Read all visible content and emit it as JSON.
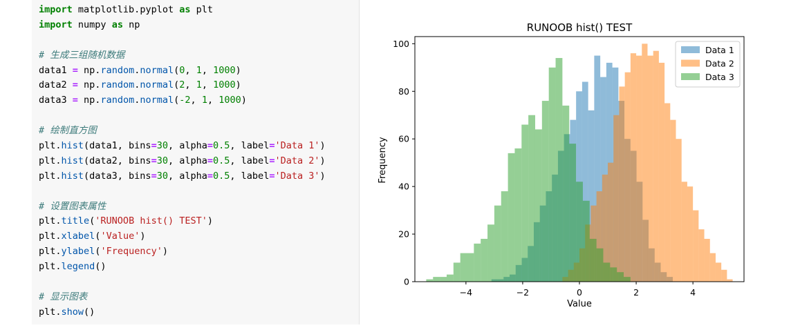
{
  "code": {
    "lines": [
      [
        {
          "t": "import",
          "c": "kw"
        },
        {
          "t": " matplotlib.pyplot "
        },
        {
          "t": "as",
          "c": "kw"
        },
        {
          "t": " plt"
        }
      ],
      [
        {
          "t": "import",
          "c": "kw"
        },
        {
          "t": " numpy "
        },
        {
          "t": "as",
          "c": "kw"
        },
        {
          "t": " np"
        }
      ],
      [],
      [
        {
          "t": "# 生成三组随机数据",
          "c": "cmt"
        }
      ],
      [
        {
          "t": "data1 "
        },
        {
          "t": "=",
          "c": "op"
        },
        {
          "t": " np."
        },
        {
          "t": "random",
          "c": "fn"
        },
        {
          "t": "."
        },
        {
          "t": "normal",
          "c": "fn"
        },
        {
          "t": "("
        },
        {
          "t": "0",
          "c": "num"
        },
        {
          "t": ", "
        },
        {
          "t": "1",
          "c": "num"
        },
        {
          "t": ", "
        },
        {
          "t": "1000",
          "c": "num"
        },
        {
          "t": ")"
        }
      ],
      [
        {
          "t": "data2 "
        },
        {
          "t": "=",
          "c": "op"
        },
        {
          "t": " np."
        },
        {
          "t": "random",
          "c": "fn"
        },
        {
          "t": "."
        },
        {
          "t": "normal",
          "c": "fn"
        },
        {
          "t": "("
        },
        {
          "t": "2",
          "c": "num"
        },
        {
          "t": ", "
        },
        {
          "t": "1",
          "c": "num"
        },
        {
          "t": ", "
        },
        {
          "t": "1000",
          "c": "num"
        },
        {
          "t": ")"
        }
      ],
      [
        {
          "t": "data3 "
        },
        {
          "t": "=",
          "c": "op"
        },
        {
          "t": " np."
        },
        {
          "t": "random",
          "c": "fn"
        },
        {
          "t": "."
        },
        {
          "t": "normal",
          "c": "fn"
        },
        {
          "t": "("
        },
        {
          "t": "-2",
          "c": "num"
        },
        {
          "t": ", "
        },
        {
          "t": "1",
          "c": "num"
        },
        {
          "t": ", "
        },
        {
          "t": "1000",
          "c": "num"
        },
        {
          "t": ")"
        }
      ],
      [],
      [
        {
          "t": "# 绘制直方图",
          "c": "cmt"
        }
      ],
      [
        {
          "t": "plt."
        },
        {
          "t": "hist",
          "c": "fn"
        },
        {
          "t": "(data1, bins"
        },
        {
          "t": "=",
          "c": "op"
        },
        {
          "t": "30",
          "c": "num"
        },
        {
          "t": ", alpha"
        },
        {
          "t": "=",
          "c": "op"
        },
        {
          "t": "0.5",
          "c": "num"
        },
        {
          "t": ", label"
        },
        {
          "t": "=",
          "c": "op"
        },
        {
          "t": "'Data 1'",
          "c": "str"
        },
        {
          "t": ")"
        }
      ],
      [
        {
          "t": "plt."
        },
        {
          "t": "hist",
          "c": "fn"
        },
        {
          "t": "(data2, bins"
        },
        {
          "t": "=",
          "c": "op"
        },
        {
          "t": "30",
          "c": "num"
        },
        {
          "t": ", alpha"
        },
        {
          "t": "=",
          "c": "op"
        },
        {
          "t": "0.5",
          "c": "num"
        },
        {
          "t": ", label"
        },
        {
          "t": "=",
          "c": "op"
        },
        {
          "t": "'Data 2'",
          "c": "str"
        },
        {
          "t": ")"
        }
      ],
      [
        {
          "t": "plt."
        },
        {
          "t": "hist",
          "c": "fn"
        },
        {
          "t": "(data3, bins"
        },
        {
          "t": "=",
          "c": "op"
        },
        {
          "t": "30",
          "c": "num"
        },
        {
          "t": ", alpha"
        },
        {
          "t": "=",
          "c": "op"
        },
        {
          "t": "0.5",
          "c": "num"
        },
        {
          "t": ", label"
        },
        {
          "t": "=",
          "c": "op"
        },
        {
          "t": "'Data 3'",
          "c": "str"
        },
        {
          "t": ")"
        }
      ],
      [],
      [
        {
          "t": "# 设置图表属性",
          "c": "cmt"
        }
      ],
      [
        {
          "t": "plt."
        },
        {
          "t": "title",
          "c": "fn"
        },
        {
          "t": "("
        },
        {
          "t": "'RUNOOB hist() TEST'",
          "c": "str"
        },
        {
          "t": ")"
        }
      ],
      [
        {
          "t": "plt."
        },
        {
          "t": "xlabel",
          "c": "fn"
        },
        {
          "t": "("
        },
        {
          "t": "'Value'",
          "c": "str"
        },
        {
          "t": ")"
        }
      ],
      [
        {
          "t": "plt."
        },
        {
          "t": "ylabel",
          "c": "fn"
        },
        {
          "t": "("
        },
        {
          "t": "'Frequency'",
          "c": "str"
        },
        {
          "t": ")"
        }
      ],
      [
        {
          "t": "plt."
        },
        {
          "t": "legend",
          "c": "fn"
        },
        {
          "t": "()"
        }
      ],
      [],
      [
        {
          "t": "# 显示图表",
          "c": "cmt"
        }
      ],
      [
        {
          "t": "plt."
        },
        {
          "t": "show",
          "c": "fn"
        },
        {
          "t": "()"
        }
      ]
    ]
  },
  "chart_data": {
    "type": "bar",
    "title": "RUNOOB hist() TEST",
    "xlabel": "Value",
    "ylabel": "Frequency",
    "xlim": [
      -5.8,
      5.8
    ],
    "ylim": [
      0,
      103
    ],
    "xticks": [
      -4,
      -2,
      0,
      2,
      4
    ],
    "yticks": [
      0,
      20,
      40,
      60,
      80,
      100
    ],
    "grid": false,
    "legend_position": "top-right",
    "series": [
      {
        "name": "Data 1",
        "color": "#1f77b4",
        "bin_start": -3.1,
        "bin_width": 0.213,
        "values": [
          1,
          1,
          2,
          3,
          7,
          10,
          15,
          25,
          32,
          38,
          45,
          55,
          62,
          68,
          80,
          84,
          72,
          95,
          86,
          92,
          90,
          76,
          60,
          55,
          42,
          26,
          14,
          8,
          4,
          2
        ]
      },
      {
        "name": "Data 2",
        "color": "#ff7f0e",
        "bin_start": -0.6,
        "bin_width": 0.2,
        "values": [
          2,
          5,
          8,
          14,
          24,
          32,
          38,
          45,
          50,
          70,
          82,
          88,
          96,
          95,
          100,
          95,
          97,
          92,
          75,
          68,
          60,
          42,
          40,
          30,
          22,
          18,
          12,
          8,
          5,
          1
        ]
      },
      {
        "name": "Data 3",
        "color": "#2ca02c",
        "bin_start": -5.4,
        "bin_width": 0.24,
        "values": [
          1,
          2,
          2,
          3,
          8,
          12,
          12,
          16,
          18,
          24,
          32,
          38,
          54,
          56,
          66,
          70,
          64,
          76,
          90,
          94,
          74,
          58,
          42,
          34,
          18,
          14,
          8,
          6,
          4,
          2
        ]
      }
    ]
  }
}
